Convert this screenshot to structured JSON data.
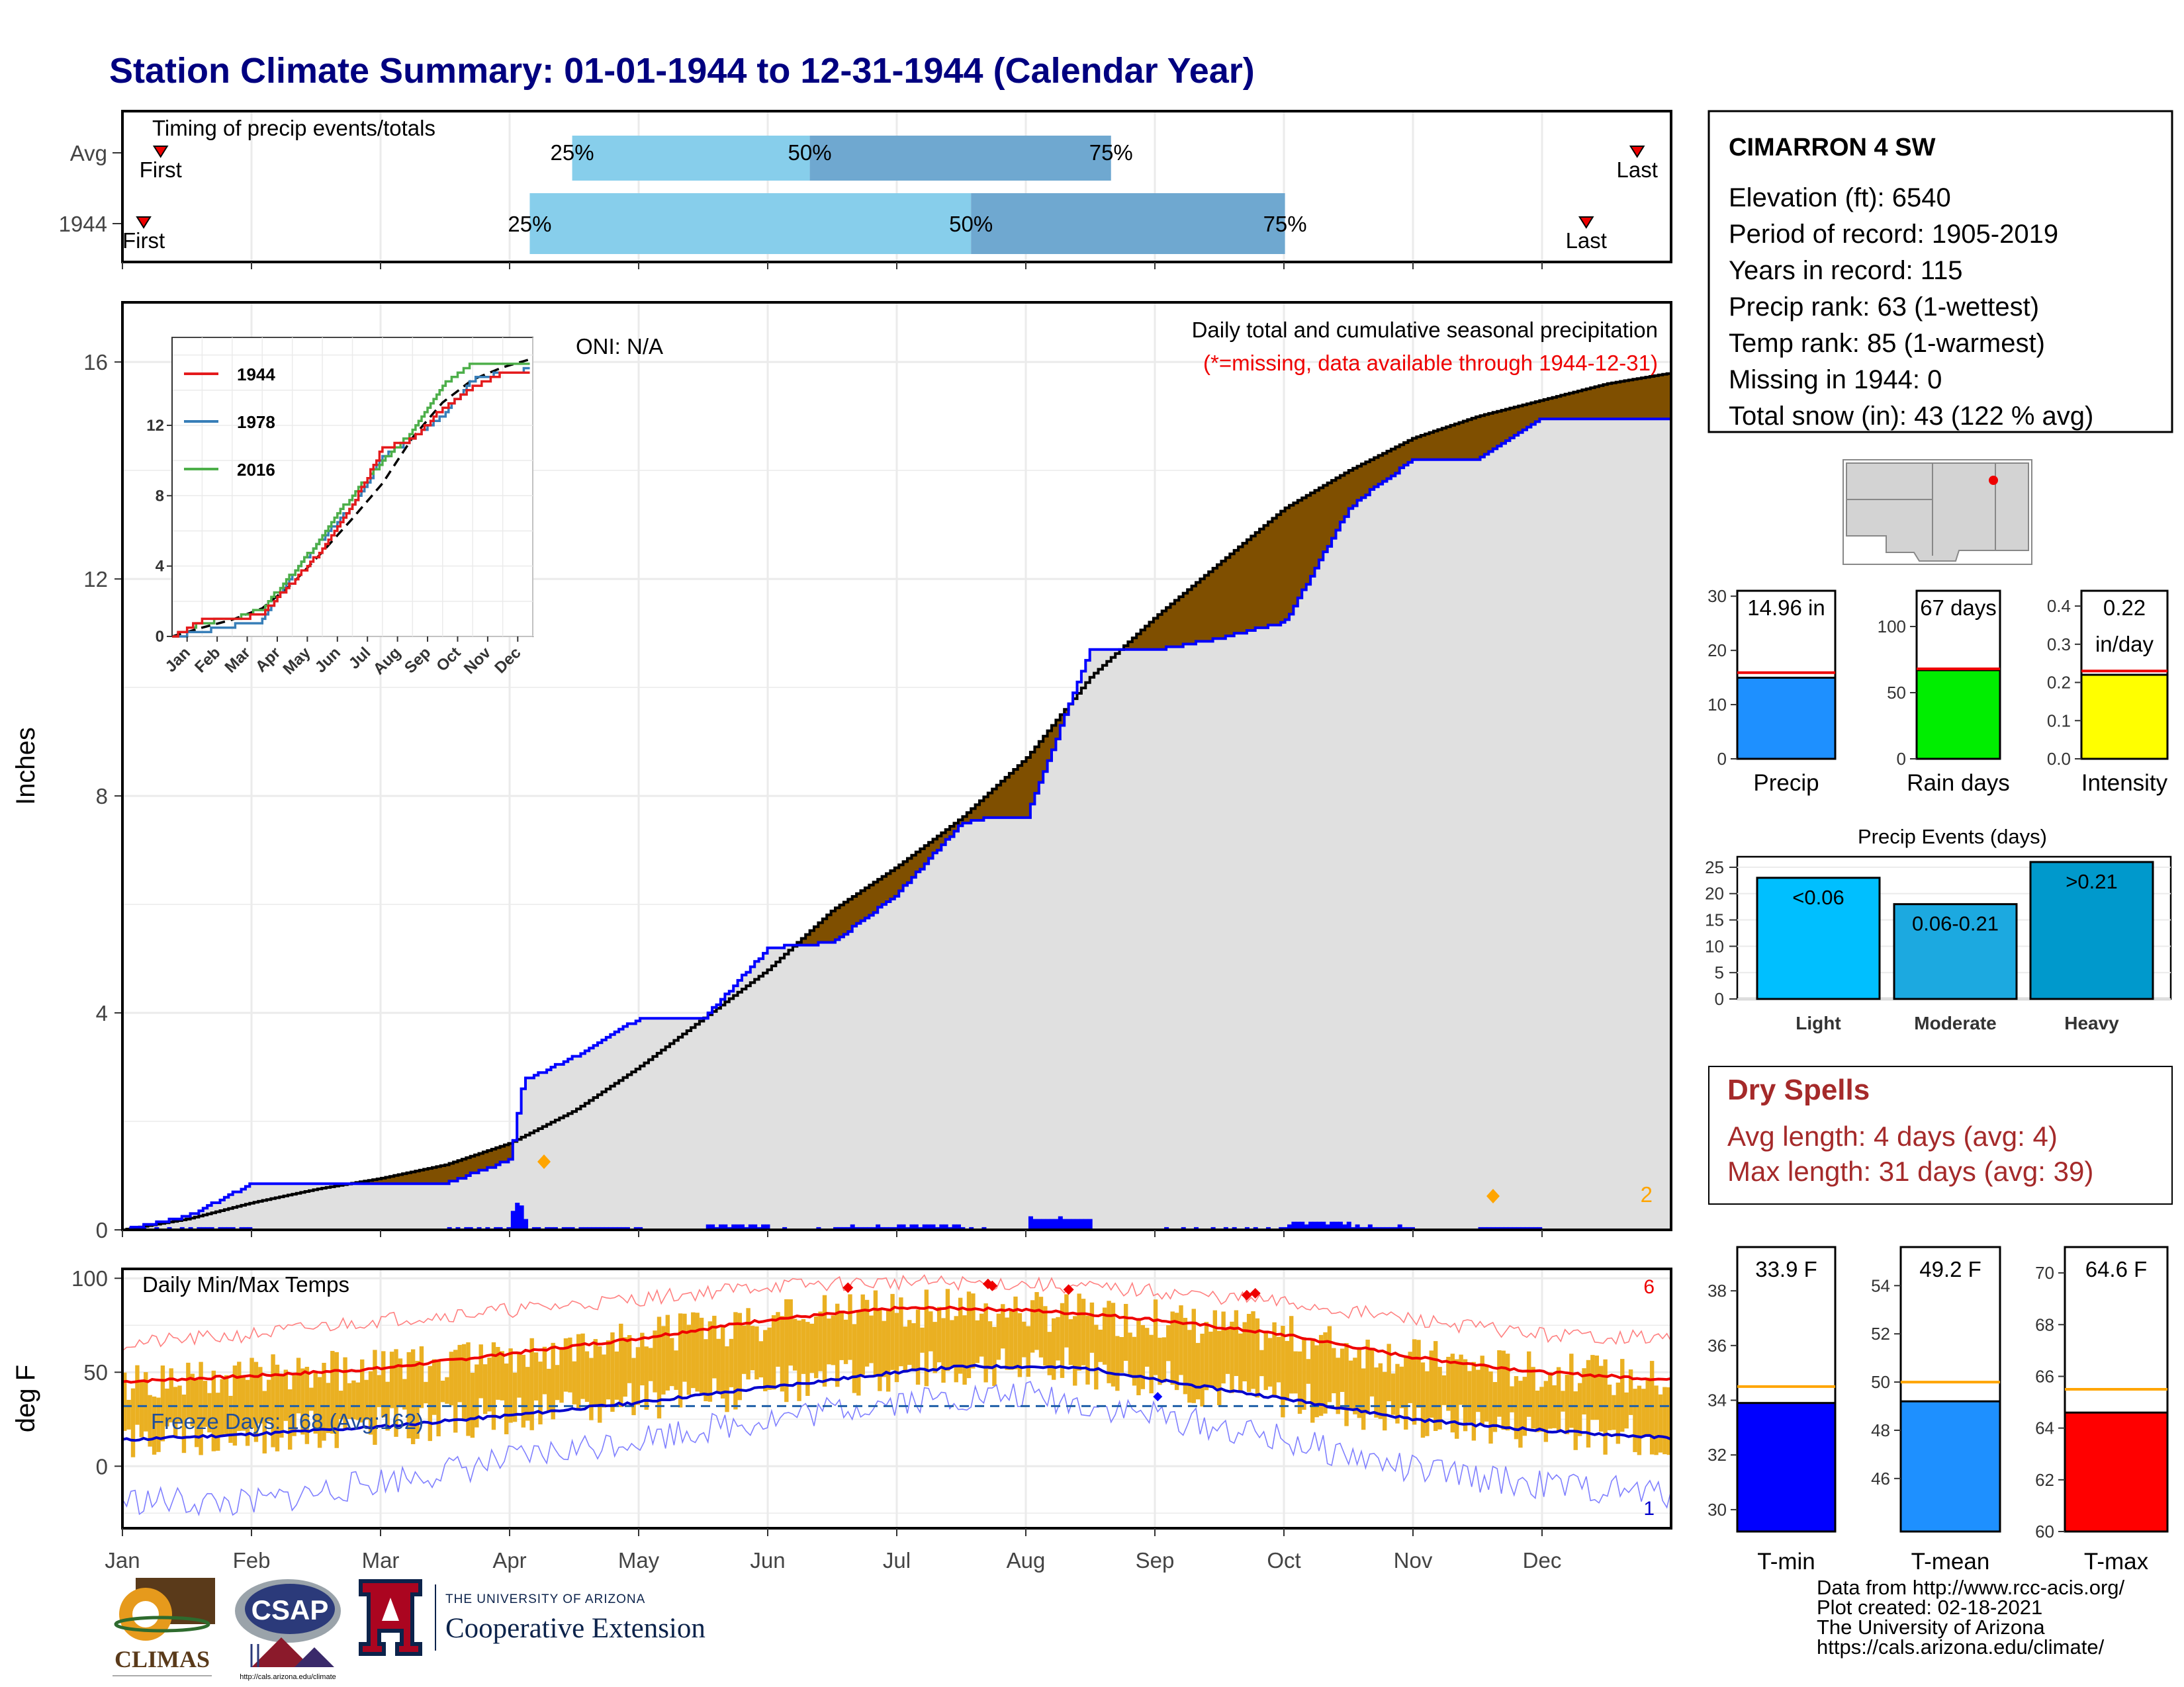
{
  "title": "Station Climate Summary: 01-01-1944 to 12-31-1944 (Calendar Year)",
  "timing": {
    "label": "Timing of precip events/totals",
    "rows": [
      {
        "name": "Avg",
        "first": "First",
        "last": "Last",
        "first_doy": 10,
        "last_doy": 358,
        "q25_doy": 107,
        "q50_doy": 163,
        "q75_doy": 234
      },
      {
        "name": "1944",
        "first": "First",
        "last": "Last",
        "first_doy": 6,
        "last_doy": 346,
        "q25_doy": 97,
        "q50_doy": 201,
        "q75_doy": 275
      }
    ],
    "pct_labels": [
      "25%",
      "50%",
      "75%"
    ]
  },
  "station": {
    "name": "CIMARRON 4 SW",
    "lines": [
      "Elevation (ft): 6540",
      "Period of record: 1905-2019",
      "Years in record: 115",
      "Precip rank: 63 (1-wettest)",
      "Temp rank: 85 (1-warmest)",
      "Missing in 1944: 0",
      "Total snow (in): 43 (122 % avg)"
    ]
  },
  "months": [
    "Jan",
    "Feb",
    "Mar",
    "Apr",
    "May",
    "Jun",
    "Jul",
    "Aug",
    "Sep",
    "Oct",
    "Nov",
    "Dec"
  ],
  "precip_panel": {
    "ylabel": "Inches",
    "yticks": [
      0,
      4,
      8,
      12,
      16
    ],
    "ylim": [
      0,
      17.1
    ],
    "oni": "ONI: N/A",
    "caption": "Daily total and cumulative seasonal precipitation",
    "missing_note": "(*=missing, data available through 1944-12-31)",
    "extreme_count": "2",
    "colors": {
      "climo": "#000000",
      "observed_line": "#0000ff",
      "deficit": "#7f4f00",
      "surplus": "#008000",
      "fill": "#e0e0e0"
    }
  },
  "inset": {
    "yticks": [
      "0",
      "4",
      "8",
      "12"
    ],
    "legend": [
      {
        "name": "1944",
        "color": "#e41a1c"
      },
      {
        "name": "1978",
        "color": "#377eb8"
      },
      {
        "name": "2016",
        "color": "#4daf4a"
      }
    ]
  },
  "temp_panel": {
    "ylabel": "deg F",
    "yticks": [
      0,
      50,
      100
    ],
    "ylim": [
      -33,
      105
    ],
    "label": "Daily Min/Max Temps",
    "freeze_text": "Freeze Days: 168 (Avg:162)",
    "hot_count": "6",
    "cold_count": "1",
    "freeze_line": 32
  },
  "summary_bars": [
    {
      "name": "Precip",
      "label_lines": [
        "14.96 in"
      ],
      "value": 14.96,
      "avg": 15.9,
      "ymax": 31,
      "yticks": [
        0,
        10,
        20,
        30
      ],
      "color": "#1e90ff"
    },
    {
      "name": "Rain days",
      "label_lines": [
        "67 days"
      ],
      "value": 67,
      "avg": 68,
      "ymax": 127,
      "yticks": [
        0,
        50,
        100
      ],
      "color": "#00ee00"
    },
    {
      "name": "Intensity",
      "label_lines": [
        "0.22",
        "in/day"
      ],
      "value": 0.22,
      "avg": 0.23,
      "ymax": 0.44,
      "yticks": [
        "0.0",
        "0.1",
        "0.2",
        "0.3",
        "0.4"
      ],
      "color": "#ffff00"
    }
  ],
  "events": {
    "title": "Precip Events (days)",
    "yticks": [
      0,
      5,
      10,
      15,
      20,
      25
    ],
    "categories": [
      "Light",
      "Moderate",
      "Heavy"
    ],
    "labels": [
      "<0.06",
      "0.06-0.21",
      ">0.21"
    ],
    "values": [
      23,
      18,
      26
    ],
    "colors": [
      "#00bfff",
      "#1ca9e0",
      "#0099cc"
    ]
  },
  "dry_spells": {
    "title": "Dry Spells",
    "avg_line": "Avg length: 4 days (avg: 4)",
    "max_line": "Max length: 31 days (avg: 39)"
  },
  "temp_bars": [
    {
      "name": "T-min",
      "label": "33.9 F",
      "value": 33.9,
      "avg": 34.5,
      "ymin": 29.2,
      "ymax": 39.6,
      "yticks": [
        30,
        32,
        34,
        36,
        38
      ],
      "color": "#0000ff"
    },
    {
      "name": "T-mean",
      "label": "49.2 F",
      "value": 49.2,
      "avg": 50.0,
      "ymin": 43.8,
      "ymax": 55.6,
      "yticks": [
        46,
        48,
        50,
        52,
        54
      ],
      "color": "#1e90ff"
    },
    {
      "name": "T-max",
      "label": "64.6 F",
      "value": 64.6,
      "avg": 65.5,
      "ymin": 60.0,
      "ymax": 71.0,
      "yticks": [
        60,
        62,
        64,
        66,
        68,
        70
      ],
      "color": "#ff0000"
    }
  ],
  "logos": {
    "climas": "CLIMAS",
    "csap": "CSAP",
    "csap_url": "http://cals.arizona.edu/climate",
    "ua_small": "THE UNIVERSITY OF ARIZONA",
    "ua_big": "Cooperative Extension"
  },
  "footer": [
    "Data from http://www.rcc-acis.org/",
    "Plot created: 02-18-2021",
    "The University of Arizona",
    "https://cals.arizona.edu/climate/"
  ],
  "chart_data": [
    {
      "type": "line",
      "title": "Daily total and cumulative seasonal precipitation",
      "ylabel": "Inches",
      "ylim": [
        0,
        17.1
      ],
      "x_unit": "month",
      "series": [
        {
          "name": "1944",
          "x": [
            1,
            1.5,
            2,
            2.5,
            3,
            3.5,
            4,
            4.1,
            4.5,
            5,
            5.5,
            6,
            6.5,
            7,
            7.5,
            7.7,
            8,
            8.3,
            8.5,
            9,
            9.5,
            9.8,
            10,
            10.5,
            10.7,
            11,
            11.5,
            12,
            12.5,
            13
          ],
          "y": [
            0,
            0.25,
            0.85,
            0.85,
            0.85,
            0.85,
            1.3,
            2.75,
            3.2,
            3.9,
            3.9,
            5.2,
            5.3,
            6.2,
            7.5,
            7.6,
            7.6,
            9.5,
            10.7,
            10.7,
            10.9,
            11.1,
            11.2,
            13.3,
            13.7,
            14.2,
            14.2,
            14.96,
            14.96,
            14.96
          ]
        },
        {
          "name": "avg",
          "x": [
            1,
            1.5,
            2,
            2.5,
            3,
            3.5,
            4,
            4.5,
            5,
            5.5,
            6,
            6.5,
            7,
            7.5,
            8,
            8.5,
            9,
            9.5,
            10,
            10.5,
            11,
            11.5,
            12,
            12.5,
            13
          ],
          "y": [
            0,
            0.2,
            0.5,
            0.75,
            0.95,
            1.2,
            1.6,
            2.2,
            3.0,
            3.9,
            4.8,
            5.9,
            6.7,
            7.6,
            8.7,
            10.2,
            11.3,
            12.3,
            13.3,
            14.0,
            14.6,
            15.0,
            15.3,
            15.6,
            15.8
          ]
        }
      ]
    },
    {
      "type": "line",
      "title": "",
      "x_unit": "month",
      "yticks": [
        0,
        4,
        8,
        12
      ],
      "series": [
        {
          "name": "1944",
          "x": [
            1,
            2,
            3,
            4,
            5,
            6,
            7,
            8,
            9,
            10,
            11,
            12,
            13
          ],
          "y": [
            0,
            0.9,
            0.9,
            1.3,
            3.1,
            5.0,
            7.5,
            10.7,
            11.2,
            13.0,
            14.2,
            14.96,
            14.96
          ]
        },
        {
          "name": "1978",
          "x": [
            1,
            2,
            3,
            4,
            5,
            6,
            7,
            8,
            9,
            10,
            11,
            12,
            13
          ],
          "y": [
            0,
            0.3,
            0.6,
            0.9,
            3.6,
            5.6,
            7.5,
            10.2,
            11.3,
            12.6,
            14.6,
            15.0,
            15.2
          ]
        },
        {
          "name": "2016",
          "x": [
            1,
            2,
            3,
            4,
            5,
            6,
            7,
            8,
            9,
            10,
            11,
            12,
            13
          ],
          "y": [
            0,
            0.8,
            1.0,
            1.6,
            3.6,
            5.7,
            8.1,
            10.0,
            11.7,
            14.3,
            15.6,
            15.6,
            15.6
          ]
        },
        {
          "name": "avg",
          "x": [
            1,
            2,
            3,
            4,
            5,
            6,
            7,
            8,
            9,
            10,
            11,
            12,
            13
          ],
          "y": [
            0,
            0.5,
            0.95,
            1.6,
            3.0,
            4.8,
            6.7,
            8.7,
            11.3,
            13.3,
            14.6,
            15.3,
            15.8
          ]
        }
      ]
    },
    {
      "type": "line",
      "title": "Daily Min/Max Temps",
      "ylabel": "deg F",
      "ylim": [
        -33,
        105
      ],
      "x_unit": "month",
      "series": [
        {
          "name": "avg max",
          "x": [
            1,
            2,
            3,
            4,
            5,
            6,
            7,
            7.5,
            8,
            8.5,
            9,
            10,
            11,
            12,
            13
          ],
          "y": [
            45,
            48,
            52,
            60,
            68,
            78,
            84,
            84,
            83,
            81,
            78,
            70,
            58,
            50,
            46
          ]
        },
        {
          "name": "avg min",
          "x": [
            1,
            2,
            3,
            4,
            5,
            6,
            7,
            7.5,
            8,
            8.5,
            9,
            10,
            11,
            12,
            13
          ],
          "y": [
            14,
            17,
            21,
            27,
            34,
            42,
            50,
            53,
            53,
            52,
            46,
            36,
            25,
            19,
            15
          ]
        },
        {
          "name": "record max",
          "x": [
            1,
            2,
            3,
            4,
            5,
            6,
            7,
            8,
            9,
            10,
            11,
            12,
            13
          ],
          "y": [
            65,
            70,
            78,
            83,
            89,
            96,
            98,
            97,
            93,
            87,
            78,
            70,
            68
          ]
        },
        {
          "name": "record min",
          "x": [
            1,
            2,
            3,
            4,
            5,
            6,
            7,
            8,
            9,
            10,
            11,
            12,
            13
          ],
          "y": [
            -18,
            -20,
            -8,
            3,
            15,
            25,
            35,
            38,
            27,
            14,
            -2,
            -10,
            -15
          ]
        }
      ]
    },
    {
      "type": "bar",
      "title": "Precip Events (days)",
      "categories": [
        "Light",
        "Moderate",
        "Heavy"
      ],
      "values": [
        23,
        18,
        26
      ],
      "ylim": [
        0,
        27
      ]
    },
    {
      "type": "bar",
      "categories": [
        "Precip",
        "Rain days",
        "Intensity"
      ],
      "values": [
        14.96,
        67,
        0.22
      ]
    },
    {
      "type": "bar",
      "categories": [
        "T-min",
        "T-mean",
        "T-max"
      ],
      "values": [
        33.9,
        49.2,
        64.6
      ]
    }
  ]
}
